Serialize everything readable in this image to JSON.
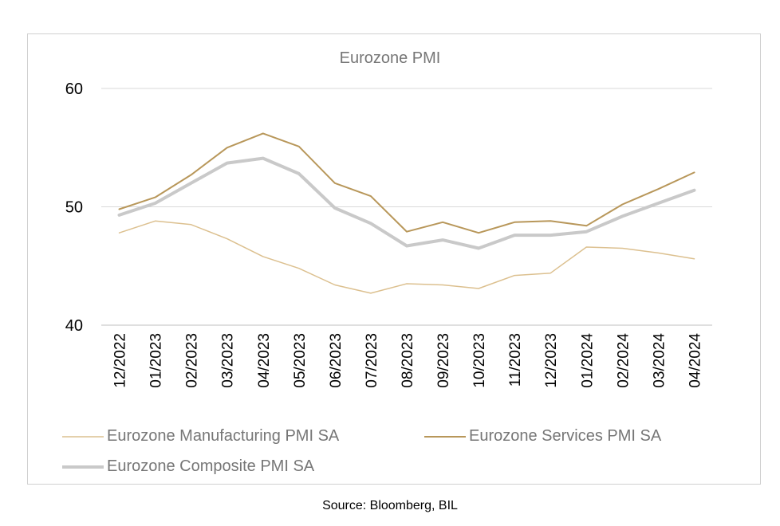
{
  "chart_data": {
    "type": "line",
    "title": "Eurozone PMI",
    "categories": [
      "12/2022",
      "01/2023",
      "02/2023",
      "03/2023",
      "04/2023",
      "05/2023",
      "06/2023",
      "07/2023",
      "08/2023",
      "09/2023",
      "10/2023",
      "11/2023",
      "12/2023",
      "01/2024",
      "02/2024",
      "03/2024",
      "04/2024"
    ],
    "ylim": [
      40,
      60
    ],
    "yticks": [
      "40",
      "50",
      "60"
    ],
    "grid": true,
    "legend_position": "bottom",
    "series": [
      {
        "name": "Eurozone Manufacturing PMI SA",
        "color": "#dcc08f",
        "width": 1.5,
        "values": [
          47.8,
          48.8,
          48.5,
          47.3,
          45.8,
          44.8,
          43.4,
          42.7,
          43.5,
          43.4,
          43.1,
          44.2,
          44.4,
          46.6,
          46.5,
          46.1,
          45.6
        ]
      },
      {
        "name": "Eurozone Services PMI SA",
        "color": "#b8975a",
        "width": 2,
        "values": [
          49.8,
          50.8,
          52.7,
          55.0,
          56.2,
          55.1,
          52.0,
          50.9,
          47.9,
          48.7,
          47.8,
          48.7,
          48.8,
          48.4,
          50.2,
          51.5,
          52.9
        ]
      },
      {
        "name": "Eurozone Composite PMI SA",
        "color": "#c9c9c9",
        "width": 4,
        "values": [
          49.3,
          50.3,
          52.0,
          53.7,
          54.1,
          52.8,
          49.9,
          48.6,
          46.7,
          47.2,
          46.5,
          47.6,
          47.6,
          47.9,
          49.2,
          50.3,
          51.4
        ]
      }
    ]
  },
  "source": "Source: Bloomberg, BIL"
}
